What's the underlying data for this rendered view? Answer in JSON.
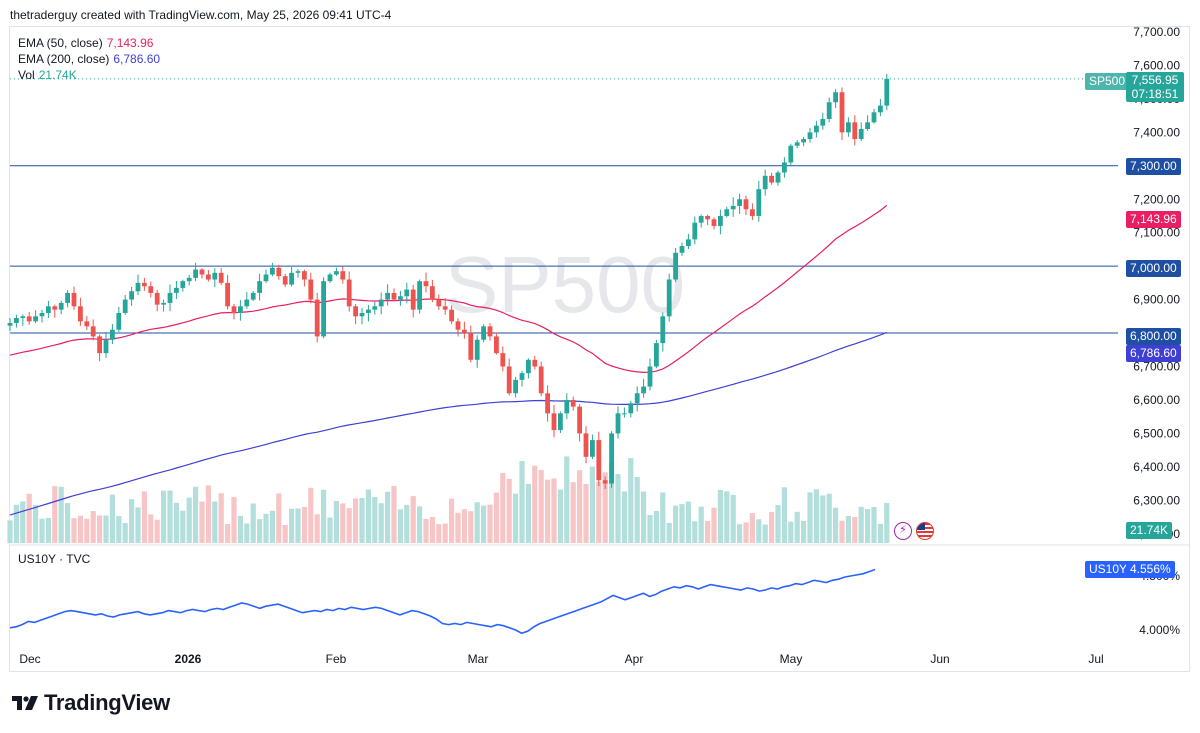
{
  "header": {
    "attribution": "thetraderguy created with TradingView.com, May 25, 2026 09:41 UTC-4"
  },
  "watermark": "SP500",
  "legend": {
    "ema50_label": "EMA (50, close)",
    "ema50_value": "7,143.96",
    "ema200_label": "EMA (200, close)",
    "ema200_value": "6,786.60",
    "vol_label": "Vol",
    "vol_value": "21.74K"
  },
  "sub_legend": {
    "label": "US10Y · TVC"
  },
  "price_axis": {
    "ticks": [
      "7,700.00",
      "7,600.00",
      "7,500.00",
      "7,400.00",
      "7,300.00",
      "7,200.00",
      "7,100.00",
      "7,000.00",
      "6,900.00",
      "6,800.00",
      "6,700.00",
      "6,600.00",
      "6,500.00",
      "6,400.00",
      "6,300.00",
      "6,200.00"
    ]
  },
  "bond_axis": {
    "ticks": [
      "4.500%",
      "4.000%"
    ]
  },
  "time_axis": {
    "labels": [
      "Dec",
      "2026",
      "Feb",
      "Mar",
      "Apr",
      "May",
      "Jun",
      "Jul"
    ]
  },
  "tags": {
    "symbol": "SP500",
    "last_price": "7,556.95",
    "countdown": "07:18:51",
    "level_7300": "7,300.00",
    "ema50": "7,143.96",
    "level_7000": "7,000.00",
    "level_6800": "6,800.00",
    "ema200": "6,786.60",
    "volume": "21.74K",
    "bond_symbol": "US10Y",
    "bond_value": "4.556%"
  },
  "footer": {
    "brand": "TradingView"
  },
  "colors": {
    "up": "#26a69a",
    "down": "#ef5350",
    "ema50": "#e91e63",
    "ema200": "#3f3fd4",
    "hline": "#1e4fa3",
    "bond": "#2962ff",
    "vol_up": "#b2dfdb",
    "vol_down": "#f7c5c5"
  },
  "chart_data": [
    {
      "type": "candlestick",
      "title": "SP500",
      "horizontal_levels": [
        7300,
        7000,
        6800
      ],
      "ylim": [
        6180,
        7720
      ],
      "indicators": [
        {
          "name": "EMA (50, close)",
          "last": 7143.96
        },
        {
          "name": "EMA (200, close)",
          "last": 6786.6
        },
        {
          "name": "Vol",
          "last": "21.74K"
        }
      ],
      "closes": [
        6830,
        6845,
        6850,
        6835,
        6850,
        6860,
        6880,
        6870,
        6890,
        6920,
        6880,
        6835,
        6820,
        6790,
        6740,
        6780,
        6810,
        6860,
        6900,
        6925,
        6950,
        6940,
        6920,
        6885,
        6890,
        6920,
        6935,
        6955,
        6965,
        6990,
        6975,
        6960,
        6980,
        6950,
        6880,
        6860,
        6880,
        6900,
        6920,
        6955,
        6975,
        6995,
        6970,
        6945,
        6980,
        6985,
        6960,
        6900,
        6790,
        6955,
        6975,
        6985,
        6960,
        6880,
        6850,
        6860,
        6870,
        6880,
        6900,
        6920,
        6900,
        6910,
        6930,
        6870,
        6955,
        6940,
        6900,
        6880,
        6870,
        6835,
        6810,
        6800,
        6720,
        6780,
        6820,
        6790,
        6740,
        6700,
        6620,
        6660,
        6680,
        6720,
        6700,
        6620,
        6560,
        6510,
        6560,
        6600,
        6580,
        6500,
        6430,
        6480,
        6360,
        6350,
        6500,
        6560,
        6560,
        6590,
        6620,
        6640,
        6700,
        6770,
        6850,
        6960,
        7040,
        7060,
        7080,
        7130,
        7150,
        7140,
        7120,
        7150,
        7170,
        7180,
        7200,
        7170,
        7150,
        7230,
        7270,
        7250,
        7280,
        7310,
        7360,
        7370,
        7380,
        7400,
        7420,
        7440,
        7490,
        7520,
        7400,
        7430,
        7380,
        7410,
        7430,
        7460,
        7480,
        7560
      ]
    },
    {
      "type": "line",
      "title": "US10Y",
      "y_ticks": [
        "4.500%",
        "4.000%"
      ],
      "last": 4.556,
      "values": [
        4.02,
        4.03,
        4.05,
        4.08,
        4.07,
        4.09,
        4.11,
        4.13,
        4.15,
        4.17,
        4.18,
        4.17,
        4.16,
        4.15,
        4.14,
        4.15,
        4.13,
        4.12,
        4.14,
        4.15,
        4.16,
        4.17,
        4.15,
        4.14,
        4.15,
        4.16,
        4.18,
        4.17,
        4.16,
        4.18,
        4.19,
        4.18,
        4.17,
        4.19,
        4.2,
        4.19,
        4.21,
        4.23,
        4.25,
        4.24,
        4.22,
        4.2,
        4.22,
        4.23,
        4.24,
        4.22,
        4.2,
        4.18,
        4.16,
        4.17,
        4.18,
        4.17,
        4.19,
        4.18,
        4.2,
        4.19,
        4.21,
        4.2,
        4.19,
        4.2,
        4.21,
        4.2,
        4.18,
        4.16,
        4.14,
        4.16,
        4.18,
        4.17,
        4.15,
        4.13,
        4.1,
        4.06,
        4.05,
        4.06,
        4.05,
        4.07,
        4.06,
        4.05,
        4.04,
        4.03,
        4.05,
        4.04,
        4.02,
        4.0,
        3.97,
        3.99,
        4.03,
        4.06,
        4.08,
        4.1,
        4.12,
        4.14,
        4.16,
        4.18,
        4.2,
        4.22,
        4.24,
        4.26,
        4.29,
        4.32,
        4.3,
        4.28,
        4.3,
        4.32,
        4.34,
        4.31,
        4.33,
        4.36,
        4.38,
        4.4,
        4.39,
        4.41,
        4.4,
        4.38,
        4.4,
        4.42,
        4.41,
        4.4,
        4.39,
        4.38,
        4.37,
        4.39,
        4.38,
        4.36,
        4.37,
        4.39,
        4.38,
        4.4,
        4.41,
        4.43,
        4.42,
        4.44,
        4.46,
        4.45,
        4.44,
        4.46,
        4.47,
        4.49,
        4.5,
        4.51,
        4.52,
        4.54,
        4.56
      ]
    }
  ]
}
